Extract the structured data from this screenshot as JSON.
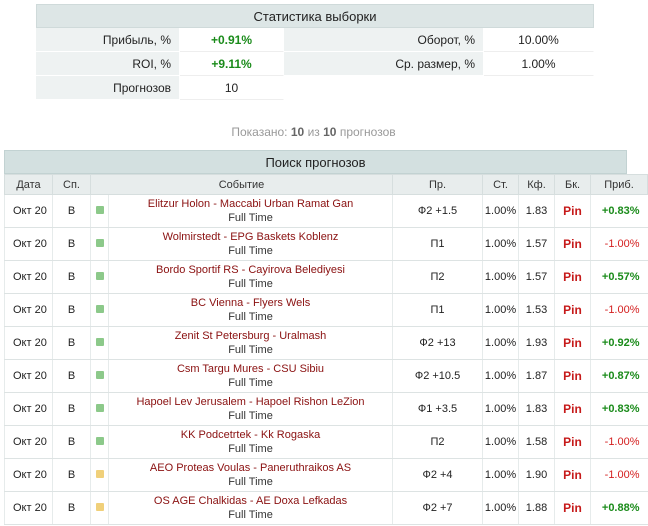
{
  "summary": {
    "title": "Статистика выборки",
    "rows": [
      {
        "label1": "Прибыль, %",
        "value1": "+0.91%",
        "label2": "Оборот, %",
        "value2": "10.00%"
      },
      {
        "label1": "ROI, %",
        "value1": "+9.11%",
        "label2": "Ср. размер, %",
        "value2": "1.00%"
      },
      {
        "label1": "Прогнозов",
        "value1": "10"
      }
    ]
  },
  "shown": {
    "prefix": "Показано:",
    "count": "10",
    "mid": "из",
    "total": "10",
    "suffix": "прогнозов"
  },
  "table": {
    "title": "Поиск прогнозов",
    "headers": [
      "Дата",
      "Сп.",
      "Событие",
      "Пр.",
      "Ст.",
      "Кф.",
      "Бк.",
      "Приб."
    ],
    "colors": {
      "green": "#8cc98a",
      "yellow": "#f0d07a"
    },
    "rows": [
      {
        "date": "Окт 20",
        "sport": "В",
        "square": "green",
        "event": "Elitzur Holon - Maccabi Urban Ramat Gan",
        "sub": "Full Time",
        "pick": "Ф2 +1.5",
        "stake": "1.00%",
        "odds": "1.83",
        "bk": "Pin",
        "profit": "+0.83%",
        "win": true
      },
      {
        "date": "Окт 20",
        "sport": "В",
        "square": "green",
        "event": "Wolmirstedt - EPG Baskets Koblenz",
        "sub": "Full Time",
        "pick": "П1",
        "stake": "1.00%",
        "odds": "1.57",
        "bk": "Pin",
        "profit": "-1.00%",
        "win": false
      },
      {
        "date": "Окт 20",
        "sport": "В",
        "square": "green",
        "event": "Bordo Sportif RS - Cayirova Belediyesi",
        "sub": "Full Time",
        "pick": "П2",
        "stake": "1.00%",
        "odds": "1.57",
        "bk": "Pin",
        "profit": "+0.57%",
        "win": true
      },
      {
        "date": "Окт 20",
        "sport": "В",
        "square": "green",
        "event": "BC Vienna - Flyers Wels",
        "sub": "Full Time",
        "pick": "П1",
        "stake": "1.00%",
        "odds": "1.53",
        "bk": "Pin",
        "profit": "-1.00%",
        "win": false
      },
      {
        "date": "Окт 20",
        "sport": "В",
        "square": "green",
        "event": "Zenit St Petersburg - Uralmash",
        "sub": "Full Time",
        "pick": "Ф2 +13",
        "stake": "1.00%",
        "odds": "1.93",
        "bk": "Pin",
        "profit": "+0.92%",
        "win": true
      },
      {
        "date": "Окт 20",
        "sport": "В",
        "square": "green",
        "event": "Csm Targu Mures - CSU Sibiu",
        "sub": "Full Time",
        "pick": "Ф2 +10.5",
        "stake": "1.00%",
        "odds": "1.87",
        "bk": "Pin",
        "profit": "+0.87%",
        "win": true
      },
      {
        "date": "Окт 20",
        "sport": "В",
        "square": "green",
        "event": "Hapoel Lev Jerusalem - Hapoel Rishon LeZion",
        "sub": "Full Time",
        "pick": "Ф1 +3.5",
        "stake": "1.00%",
        "odds": "1.83",
        "bk": "Pin",
        "profit": "+0.83%",
        "win": true
      },
      {
        "date": "Окт 20",
        "sport": "В",
        "square": "green",
        "event": "KK Podcetrtek - Kk Rogaska",
        "sub": "Full Time",
        "pick": "П2",
        "stake": "1.00%",
        "odds": "1.58",
        "bk": "Pin",
        "profit": "-1.00%",
        "win": false
      },
      {
        "date": "Окт 20",
        "sport": "В",
        "square": "yellow",
        "event": "AEO Proteas Voulas - Paneruthraikos AS",
        "sub": "Full Time",
        "pick": "Ф2 +4",
        "stake": "1.00%",
        "odds": "1.90",
        "bk": "Pin",
        "profit": "-1.00%",
        "win": false
      },
      {
        "date": "Окт 20",
        "sport": "В",
        "square": "yellow",
        "event": "OS AGE Chalkidas - AE Doxa Lefkadas",
        "sub": "Full Time",
        "pick": "Ф2 +7",
        "stake": "1.00%",
        "odds": "1.88",
        "bk": "Pin",
        "profit": "+0.88%",
        "win": true
      }
    ]
  }
}
